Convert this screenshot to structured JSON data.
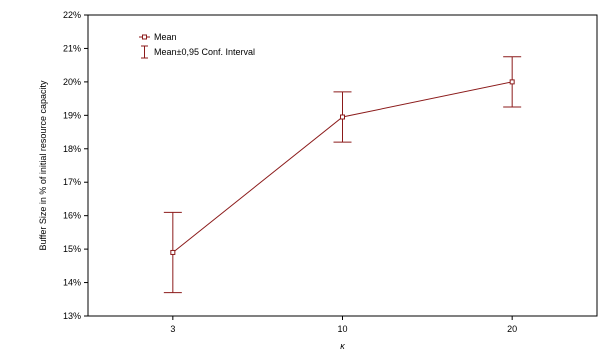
{
  "chart_data": {
    "type": "line",
    "xlabel": "κ",
    "ylabel": "Buffer Size in % of initial resource capacity",
    "categories": [
      "3",
      "10",
      "20"
    ],
    "ylim": [
      13,
      22
    ],
    "yticks": [
      13,
      14,
      15,
      16,
      17,
      18,
      19,
      20,
      21,
      22
    ],
    "ytick_labels": [
      "13%",
      "14%",
      "15%",
      "16%",
      "17%",
      "18%",
      "19%",
      "20%",
      "21%",
      "22%"
    ],
    "grid": false,
    "legend": "top-left",
    "series": [
      {
        "name": "Mean",
        "values": [
          14.9,
          18.95,
          20.0
        ],
        "ci_low": [
          13.7,
          18.2,
          19.25
        ],
        "ci_high": [
          16.1,
          19.7,
          20.75
        ]
      }
    ],
    "legend_entries": [
      "Mean",
      "Mean±0,95 Conf. Interval"
    ],
    "colors": {
      "series": "#8b1a1a",
      "axis": "#000000",
      "background": "#ffffff"
    }
  }
}
